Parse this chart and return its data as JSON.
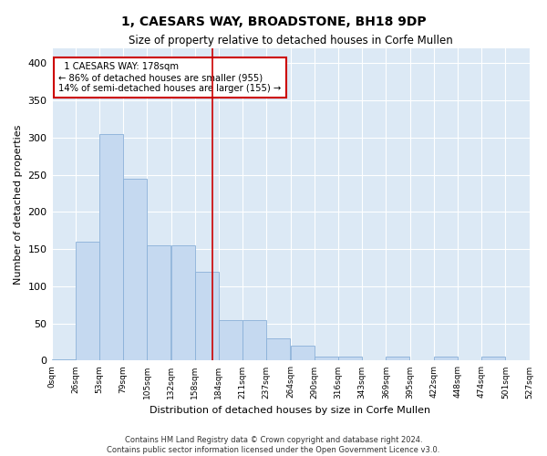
{
  "title": "1, CAESARS WAY, BROADSTONE, BH18 9DP",
  "subtitle": "Size of property relative to detached houses in Corfe Mullen",
  "xlabel": "Distribution of detached houses by size in Corfe Mullen",
  "ylabel": "Number of detached properties",
  "footer_line1": "Contains HM Land Registry data © Crown copyright and database right 2024.",
  "footer_line2": "Contains public sector information licensed under the Open Government Licence v3.0.",
  "property_size": 178,
  "bar_width": 26.5,
  "bar_left_edges": [
    0,
    26.5,
    53,
    79.5,
    106,
    132.5,
    159,
    185.5,
    212,
    238.5,
    265,
    291.5,
    318,
    344.5,
    371,
    397.5,
    424,
    450.5,
    477,
    503.5
  ],
  "bar_heights": [
    2,
    160,
    305,
    245,
    155,
    155,
    120,
    55,
    55,
    30,
    20,
    5,
    5,
    0,
    5,
    0,
    5,
    0,
    5,
    0
  ],
  "bin_labels": [
    "0sqm",
    "26sqm",
    "53sqm",
    "79sqm",
    "105sqm",
    "132sqm",
    "158sqm",
    "184sqm",
    "211sqm",
    "237sqm",
    "264sqm",
    "290sqm",
    "316sqm",
    "343sqm",
    "369sqm",
    "395sqm",
    "422sqm",
    "448sqm",
    "474sqm",
    "501sqm",
    "527sqm"
  ],
  "bar_color": "#c5d9f0",
  "bar_edge_color": "#8ab0d8",
  "vline_color": "#cc0000",
  "annotation_box_color": "#cc0000",
  "annotation_text": "  1 CAESARS WAY: 178sqm\n← 86% of detached houses are smaller (955)\n14% of semi-detached houses are larger (155) →",
  "ylim": [
    0,
    420
  ],
  "fig_bg_color": "#ffffff",
  "plot_bg_color": "#dce9f5"
}
